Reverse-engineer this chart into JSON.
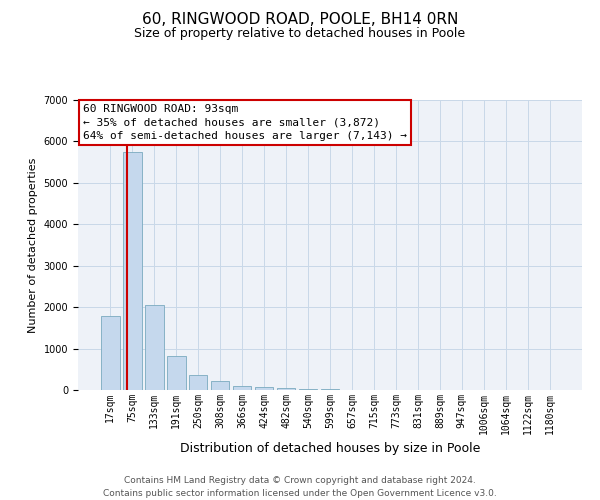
{
  "title": "60, RINGWOOD ROAD, POOLE, BH14 0RN",
  "subtitle": "Size of property relative to detached houses in Poole",
  "xlabel": "Distribution of detached houses by size in Poole",
  "ylabel": "Number of detached properties",
  "bar_labels": [
    "17sqm",
    "75sqm",
    "133sqm",
    "191sqm",
    "250sqm",
    "308sqm",
    "366sqm",
    "424sqm",
    "482sqm",
    "540sqm",
    "599sqm",
    "657sqm",
    "715sqm",
    "773sqm",
    "831sqm",
    "889sqm",
    "947sqm",
    "1006sqm",
    "1064sqm",
    "1122sqm",
    "1180sqm"
  ],
  "bar_values": [
    1780,
    5750,
    2050,
    820,
    360,
    220,
    100,
    70,
    40,
    30,
    20,
    0,
    0,
    0,
    0,
    0,
    0,
    0,
    0,
    0,
    0
  ],
  "bar_color": "#c5d8ed",
  "bar_edge_color": "#7aaabf",
  "vline_color": "#cc0000",
  "ylim": [
    0,
    7000
  ],
  "yticks": [
    0,
    1000,
    2000,
    3000,
    4000,
    5000,
    6000,
    7000
  ],
  "annotation_line1": "60 RINGWOOD ROAD: 93sqm",
  "annotation_line2": "← 35% of detached houses are smaller (3,872)",
  "annotation_line3": "64% of semi-detached houses are larger (7,143) →",
  "box_edge_color": "#cc0000",
  "grid_color": "#c8d8e8",
  "background_color": "#eef2f8",
  "footer_line1": "Contains HM Land Registry data © Crown copyright and database right 2024.",
  "footer_line2": "Contains public sector information licensed under the Open Government Licence v3.0.",
  "title_fontsize": 11,
  "subtitle_fontsize": 9,
  "xlabel_fontsize": 9,
  "ylabel_fontsize": 8,
  "tick_fontsize": 7,
  "annotation_fontsize": 8,
  "footer_fontsize": 6.5
}
